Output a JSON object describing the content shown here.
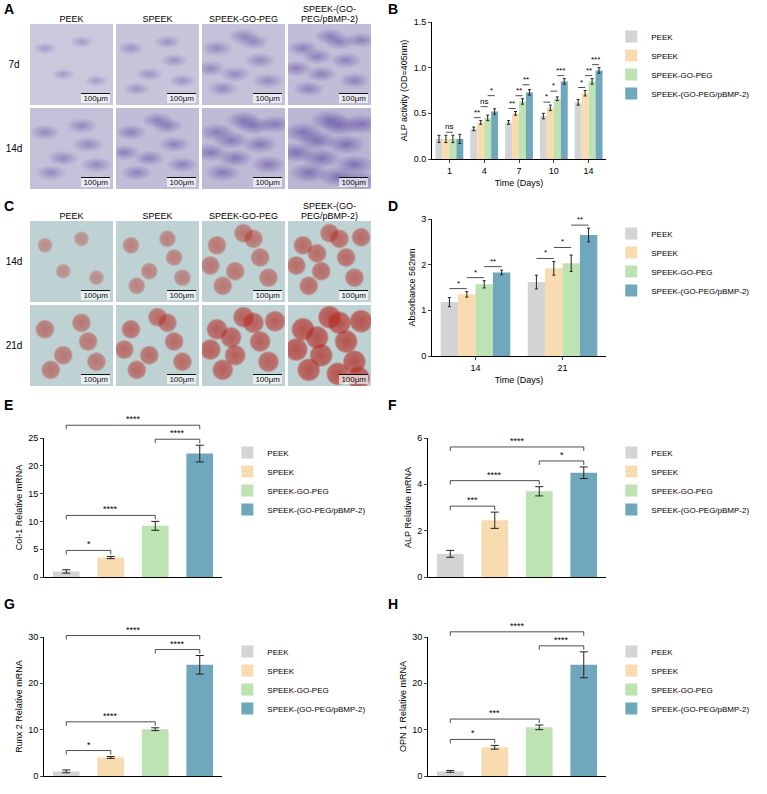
{
  "image_panels": [
    {
      "panel": "A",
      "columns": [
        "PEEK",
        "SPEEK",
        "SPEEK-GO-PEG",
        "SPEEK-(GO-PEG/pBMP-2)"
      ],
      "rows": [
        "7d",
        "14d"
      ],
      "scale_bar": "100μm",
      "color": "#6a58a8"
    },
    {
      "panel": "C",
      "columns": [
        "PEEK",
        "SPEEK",
        "SPEEK-GO-PEG",
        "SPEEK-(GO-PEG/pBMP-2)"
      ],
      "rows": [
        "14d",
        "21d"
      ],
      "scale_bar": "100μm",
      "color": "#b3261e"
    }
  ],
  "chart_data": [
    {
      "panel": "B",
      "type": "bar",
      "x_label": "Time (Days)",
      "y_label": "ALP activity (OD=405nm)",
      "categories": [
        "1",
        "4",
        "7",
        "10",
        "14"
      ],
      "series": [
        {
          "name": "PEEK",
          "color": "#d4d4d4",
          "values": [
            0.22,
            0.33,
            0.4,
            0.47,
            0.62
          ],
          "errors": [
            0.04,
            0.02,
            0.02,
            0.03,
            0.03
          ]
        },
        {
          "name": "SPEEK",
          "color": "#f8dcb0",
          "values": [
            0.22,
            0.4,
            0.5,
            0.56,
            0.72
          ],
          "errors": [
            0.04,
            0.02,
            0.02,
            0.03,
            0.03
          ]
        },
        {
          "name": "SPEEK-GO-PEG",
          "color": "#bde3b2",
          "values": [
            0.22,
            0.45,
            0.63,
            0.66,
            0.85
          ],
          "errors": [
            0.04,
            0.03,
            0.03,
            0.02,
            0.03
          ]
        },
        {
          "name": "SPEEK-(GO-PEG/pBMP-2)",
          "color": "#6fa7bd",
          "values": [
            0.22,
            0.52,
            0.73,
            0.85,
            0.97
          ],
          "errors": [
            0.05,
            0.03,
            0.03,
            0.03,
            0.03
          ]
        }
      ],
      "ylim": [
        0,
        1.5
      ],
      "yticks": [
        {
          "value": 0,
          "label": "0.0"
        },
        {
          "value": 0.5,
          "label": "0.5"
        },
        {
          "value": 1,
          "label": "1.0"
        },
        {
          "value": 1.5,
          "label": "1.5"
        }
      ],
      "grid": false,
      "legend": "right",
      "significance": [
        {
          "category": "1",
          "between": [
            1,
            2
          ],
          "label": "ns"
        },
        {
          "category": "4",
          "between": [
            0,
            1
          ],
          "label": "**"
        },
        {
          "category": "4",
          "between": [
            1,
            2
          ],
          "label": "ns"
        },
        {
          "category": "4",
          "between": [
            2,
            3
          ],
          "label": "*"
        },
        {
          "category": "7",
          "between": [
            0,
            1
          ],
          "label": "**"
        },
        {
          "category": "7",
          "between": [
            1,
            2
          ],
          "label": "**"
        },
        {
          "category": "7",
          "between": [
            2,
            3
          ],
          "label": "**"
        },
        {
          "category": "10",
          "between": [
            0,
            1
          ],
          "label": "*"
        },
        {
          "category": "10",
          "between": [
            1,
            2
          ],
          "label": "*"
        },
        {
          "category": "10",
          "between": [
            2,
            3
          ],
          "label": "***"
        },
        {
          "category": "14",
          "between": [
            0,
            1
          ],
          "label": "*"
        },
        {
          "category": "14",
          "between": [
            1,
            2
          ],
          "label": "**"
        },
        {
          "category": "14",
          "between": [
            2,
            3
          ],
          "label": "***"
        }
      ]
    },
    {
      "panel": "D",
      "type": "bar",
      "x_label": "Time (Days)",
      "y_label": "Absorbance 562nm",
      "categories": [
        "14",
        "21"
      ],
      "series": [
        {
          "name": "PEEK",
          "color": "#d4d4d4",
          "values": [
            1.18,
            1.62
          ],
          "errors": [
            0.1,
            0.15
          ]
        },
        {
          "name": "SPEEK",
          "color": "#f8dcb0",
          "values": [
            1.35,
            1.92
          ],
          "errors": [
            0.06,
            0.15
          ]
        },
        {
          "name": "SPEEK-GO-PEG",
          "color": "#bde3b2",
          "values": [
            1.57,
            2.03
          ],
          "errors": [
            0.08,
            0.18
          ]
        },
        {
          "name": "SPEEK-(GO-PEG/pBMP-2)",
          "color": "#6fa7bd",
          "values": [
            1.83,
            2.65
          ],
          "errors": [
            0.05,
            0.15
          ]
        }
      ],
      "ylim": [
        0,
        3
      ],
      "yticks": [
        0,
        1,
        2,
        3
      ],
      "grid": false,
      "legend": "right",
      "significance": [
        {
          "category": "14",
          "between": [
            0,
            1
          ],
          "label": "*"
        },
        {
          "category": "14",
          "between": [
            1,
            2
          ],
          "label": "*"
        },
        {
          "category": "14",
          "between": [
            2,
            3
          ],
          "label": "**"
        },
        {
          "category": "21",
          "between": [
            0,
            1
          ],
          "label": "*"
        },
        {
          "category": "21",
          "between": [
            1,
            2
          ],
          "label": "*"
        },
        {
          "category": "21",
          "between": [
            2,
            3
          ],
          "label": "**"
        }
      ]
    },
    {
      "panel": "E",
      "type": "bar",
      "y_label": "Col-1 Relative mRNA",
      "categories": [
        "PEEK",
        "SPEEK",
        "SPEEK-GO-PEG",
        "SPEEK-(GO-PEG/pBMP-2)"
      ],
      "values": [
        1.0,
        3.5,
        9.2,
        22.2
      ],
      "errors": [
        0.3,
        0.2,
        0.8,
        1.5
      ],
      "colors": [
        "#d4d4d4",
        "#f8dcb0",
        "#bde3b2",
        "#6fa7bd"
      ],
      "ylim": [
        0,
        25
      ],
      "yticks": [
        0,
        5,
        10,
        15,
        20,
        25
      ],
      "grid": false,
      "legend": "right",
      "tick_labels": "y",
      "comparisons": [
        {
          "between": [
            0,
            1
          ],
          "label": "*"
        },
        {
          "between": [
            0,
            2
          ],
          "label": "****"
        },
        {
          "between": [
            2,
            3
          ],
          "label": "****"
        },
        {
          "between": [
            0,
            3
          ],
          "label": "****"
        }
      ]
    },
    {
      "panel": "F",
      "type": "bar",
      "y_label": "ALP Relative mRNA",
      "categories": [
        "PEEK",
        "SPEEK",
        "SPEEK-GO-PEG",
        "SPEEK-(GO-PEG/pBMP-2)"
      ],
      "values": [
        1.0,
        2.45,
        3.7,
        4.5
      ],
      "errors": [
        0.15,
        0.35,
        0.2,
        0.25
      ],
      "colors": [
        "#d4d4d4",
        "#f8dcb0",
        "#bde3b2",
        "#6fa7bd"
      ],
      "ylim": [
        0,
        6
      ],
      "yticks": [
        0,
        2,
        4,
        6
      ],
      "grid": false,
      "legend": "right",
      "tick_labels": "y",
      "comparisons": [
        {
          "between": [
            0,
            1
          ],
          "label": "***"
        },
        {
          "between": [
            0,
            2
          ],
          "label": "****"
        },
        {
          "between": [
            2,
            3
          ],
          "label": "*"
        },
        {
          "between": [
            0,
            3
          ],
          "label": "****"
        }
      ]
    },
    {
      "panel": "G",
      "type": "bar",
      "y_label": "Runx 2 Relative mRNA",
      "categories": [
        "PEEK",
        "SPEEK",
        "SPEEK-GO-PEG",
        "SPEEK-(GO-PEG/pBMP-2)"
      ],
      "values": [
        1.0,
        4.0,
        10.1,
        24.0
      ],
      "errors": [
        0.3,
        0.2,
        0.3,
        2.0
      ],
      "colors": [
        "#d4d4d4",
        "#f8dcb0",
        "#bde3b2",
        "#6fa7bd"
      ],
      "ylim": [
        0,
        30
      ],
      "yticks": [
        0,
        10,
        20,
        30
      ],
      "grid": false,
      "legend": "right",
      "tick_labels": "y",
      "comparisons": [
        {
          "between": [
            0,
            1
          ],
          "label": "*"
        },
        {
          "between": [
            0,
            2
          ],
          "label": "****"
        },
        {
          "between": [
            2,
            3
          ],
          "label": "****"
        },
        {
          "between": [
            0,
            3
          ],
          "label": "****"
        }
      ]
    },
    {
      "panel": "H",
      "type": "bar",
      "y_label": "OPN 1 Relative mRNA",
      "categories": [
        "PEEK",
        "SPEEK",
        "SPEEK-GO-PEG",
        "SPEEK-(GO-PEG/pBMP-2)"
      ],
      "values": [
        1.0,
        6.2,
        10.5,
        24.0
      ],
      "errors": [
        0.2,
        0.4,
        0.5,
        2.8
      ],
      "colors": [
        "#d4d4d4",
        "#f8dcb0",
        "#bde3b2",
        "#6fa7bd"
      ],
      "ylim": [
        0,
        30
      ],
      "yticks": [
        0,
        10,
        20,
        30
      ],
      "grid": false,
      "legend": "right",
      "tick_labels": "y",
      "comparisons": [
        {
          "between": [
            0,
            1
          ],
          "label": "*"
        },
        {
          "between": [
            0,
            2
          ],
          "label": "***"
        },
        {
          "between": [
            2,
            3
          ],
          "label": "****"
        },
        {
          "between": [
            0,
            3
          ],
          "label": "****"
        }
      ]
    }
  ]
}
